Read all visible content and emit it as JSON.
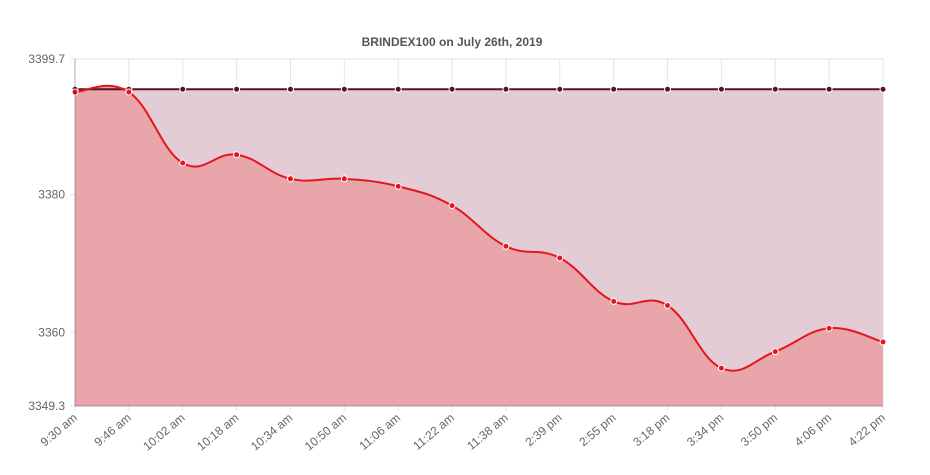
{
  "chart_data": {
    "type": "area",
    "title": "BRINDEX100 on July 26th, 2019",
    "categories": [
      "9:30 am",
      "9:46 am",
      "10:02 am",
      "10:18 am",
      "10:34 am",
      "10:50 am",
      "11:06 am",
      "11:22 am",
      "11:38 am",
      "2:39 pm",
      "2:55 pm",
      "3:18 pm",
      "3:34 pm",
      "3:50 pm",
      "4:06 pm",
      "4:22 pm"
    ],
    "series": [
      {
        "values": [
          3395.3,
          3395.3,
          3395.3,
          3395.3,
          3395.3,
          3395.3,
          3395.3,
          3395.3,
          3395.3,
          3395.3,
          3395.3,
          3395.3,
          3395.3,
          3395.3,
          3395.3,
          3395.3
        ],
        "line_color": "#5c0f2a",
        "fill_color": "#e3ccd6"
      },
      {
        "values": [
          3394.9,
          3394.9,
          3384.6,
          3385.8,
          3382.3,
          3382.3,
          3381.2,
          3378.4,
          3372.5,
          3370.8,
          3364.5,
          3363.9,
          3354.8,
          3357.2,
          3360.6,
          3358.6
        ],
        "line_color": "#e8141c",
        "fill_color": "#e8a6ab"
      }
    ],
    "y_ticks": [
      "3399.7",
      "3380",
      "3360",
      "3349.3"
    ],
    "y_tick_values": [
      3399.7,
      3380,
      3360,
      3349.3
    ],
    "ylim": [
      3349.3,
      3399.7
    ],
    "grid": true,
    "legend": "none"
  }
}
